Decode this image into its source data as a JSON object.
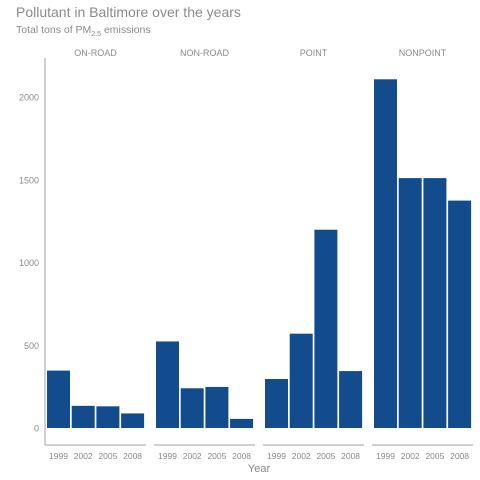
{
  "chart_data": {
    "type": "bar",
    "title": "Pollutant in Baltimore over the years",
    "subtitle": {
      "text_before": "Total tons of PM",
      "subscript": "2.5",
      "text_after": " emissions"
    },
    "xlabel": "Year",
    "ylabel": "",
    "ylim": [
      0,
      2200
    ],
    "y_ticks": [
      0,
      500,
      1000,
      1500,
      2000
    ],
    "categories": [
      "1999",
      "2002",
      "2005",
      "2008"
    ],
    "facets": [
      {
        "name": "ON-ROAD",
        "values": [
          347,
          134,
          131,
          88
        ]
      },
      {
        "name": "NON-ROAD",
        "values": [
          523,
          240,
          248,
          55
        ]
      },
      {
        "name": "POINT",
        "values": [
          296,
          570,
          1198,
          344
        ]
      },
      {
        "name": "NONPOINT",
        "values": [
          2107,
          1510,
          1510,
          1374
        ]
      }
    ],
    "bar_color": "#124c8c",
    "text_color": "#8a8a8a",
    "axis_color": "#a0a0a0",
    "grid": false
  }
}
